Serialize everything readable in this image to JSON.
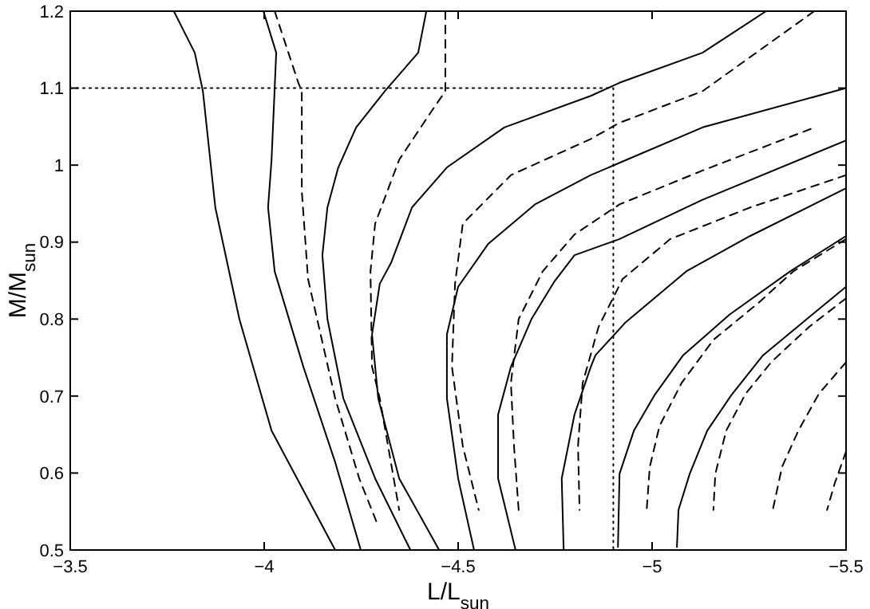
{
  "chart_data": {
    "type": "line",
    "xlabel": "L/L$_{sun}$",
    "ylabel": "M/M$_{sun}$",
    "xlim": [
      -3.5,
      -5.5
    ],
    "ylim": [
      0.5,
      1.2
    ],
    "xticks": [
      -3.5,
      -4,
      -4.5,
      -5,
      -5.5
    ],
    "yticks": [
      0.5,
      0.6,
      0.7,
      0.8,
      0.9,
      1,
      1.1,
      1.2
    ],
    "grid": false,
    "marker": "none",
    "series": [
      {
        "color": "#000000",
        "line_style": "solid",
        "x": [
          -3.767,
          -3.821,
          -3.842,
          -3.874,
          -3.936,
          -4.019,
          -4.183
        ],
        "values": [
          1.2,
          1.146,
          1.096,
          0.945,
          0.8,
          0.655,
          0.5
        ]
      },
      {
        "color": "#000000",
        "line_style": "solid",
        "x": [
          -3.998,
          -4.031,
          -4.019,
          -4.01,
          -4.027,
          -4.101,
          -4.183,
          -4.249
        ],
        "values": [
          1.2,
          1.146,
          1.007,
          0.945,
          0.862,
          0.738,
          0.614,
          0.5
        ]
      },
      {
        "color": "#000000",
        "line_style": "dashed",
        "x": [
          -4.027,
          -4.088,
          -4.097,
          -4.097,
          -4.113,
          -4.183,
          -4.245,
          -4.294
        ],
        "values": [
          1.2,
          1.107,
          1.096,
          0.966,
          0.852,
          0.697,
          0.593,
          0.531
        ]
      },
      {
        "color": "#000000",
        "line_style": "solid",
        "x": [
          -4.418,
          -4.397,
          -4.311,
          -4.237,
          -4.191,
          -4.163,
          -4.15,
          -4.163,
          -4.204,
          -4.286,
          -4.377
        ],
        "values": [
          1.2,
          1.146,
          1.096,
          1.049,
          0.997,
          0.945,
          0.883,
          0.8,
          0.697,
          0.593,
          0.5
        ]
      },
      {
        "color": "#000000",
        "line_style": "dashed",
        "x": [
          -4.467,
          -4.467,
          -4.43,
          -4.348,
          -4.286,
          -4.274,
          -4.278,
          -4.298,
          -4.348
        ],
        "values": [
          1.2,
          1.096,
          1.069,
          1.007,
          0.924,
          0.862,
          0.738,
          0.697,
          0.552
        ]
      },
      {
        "color": "#000000",
        "line_style": "solid",
        "x": [
          -5.294,
          -5.13,
          -4.916,
          -4.842,
          -4.619,
          -4.471,
          -4.381,
          -4.327,
          -4.298,
          -4.278,
          -4.294,
          -4.348,
          -4.451
        ],
        "values": [
          1.2,
          1.146,
          1.107,
          1.09,
          1.049,
          0.997,
          0.945,
          0.873,
          0.846,
          0.78,
          0.697,
          0.593,
          0.5
        ]
      },
      {
        "color": "#000000",
        "line_style": "dashed",
        "x": [
          -5.418,
          -5.13,
          -4.916,
          -4.842,
          -4.636,
          -4.512,
          -4.492,
          -4.484,
          -4.512,
          -4.553
        ],
        "values": [
          1.2,
          1.096,
          1.055,
          1.034,
          0.987,
          0.924,
          0.846,
          0.738,
          0.635,
          0.552
        ]
      },
      {
        "color": "#000000",
        "line_style": "solid",
        "x": [
          -5.5,
          -5.13,
          -4.916,
          -4.842,
          -4.698,
          -4.578,
          -4.5,
          -4.471,
          -4.471,
          -4.5,
          -4.541
        ],
        "values": [
          1.1,
          1.049,
          1.003,
          0.987,
          0.949,
          0.898,
          0.842,
          0.78,
          0.697,
          0.593,
          0.5
        ]
      },
      {
        "color": "#000000",
        "line_style": "dashed",
        "x": [
          -5.409,
          -5.13,
          -4.916,
          -4.8,
          -4.718,
          -4.656,
          -4.636,
          -4.644,
          -4.656
        ],
        "values": [
          1.047,
          0.993,
          0.949,
          0.91,
          0.862,
          0.8,
          0.717,
          0.635,
          0.552
        ]
      },
      {
        "color": "#000000",
        "line_style": "solid",
        "x": [
          -5.5,
          -5.13,
          -4.916,
          -4.8,
          -4.747,
          -4.689,
          -4.636,
          -4.603,
          -4.603,
          -4.648
        ],
        "values": [
          1.032,
          0.955,
          0.904,
          0.883,
          0.848,
          0.8,
          0.738,
          0.676,
          0.593,
          0.5
        ]
      },
      {
        "color": "#000000",
        "line_style": "dashed",
        "x": [
          -5.5,
          -5.253,
          -5.047,
          -4.924,
          -4.862,
          -4.821,
          -4.809,
          -4.813
        ],
        "values": [
          0.987,
          0.945,
          0.904,
          0.852,
          0.79,
          0.717,
          0.635,
          0.552
        ]
      },
      {
        "color": "#000000",
        "line_style": "solid",
        "x": [
          -5.5,
          -5.253,
          -5.088,
          -4.932,
          -4.854,
          -4.842,
          -4.8,
          -4.767,
          -4.772
        ],
        "values": [
          0.97,
          0.908,
          0.862,
          0.796,
          0.753,
          0.738,
          0.676,
          0.593,
          0.5
        ]
      },
      {
        "color": "#000000",
        "line_style": "dashed",
        "x": [
          -5.5,
          -5.364,
          -5.274,
          -5.158,
          -5.076,
          -5.019,
          -4.994,
          -4.986
        ],
        "values": [
          0.904,
          0.862,
          0.821,
          0.773,
          0.717,
          0.661,
          0.608,
          0.552
        ]
      },
      {
        "color": "#000000",
        "line_style": "solid",
        "x": [
          -5.5,
          -5.356,
          -5.2,
          -5.08,
          -5.006,
          -4.953,
          -4.916,
          -4.912
        ],
        "values": [
          0.908,
          0.862,
          0.806,
          0.753,
          0.701,
          0.655,
          0.599,
          0.504
        ]
      },
      {
        "color": "#000000",
        "line_style": "dashed",
        "x": [
          -5.5,
          -5.405,
          -5.307,
          -5.241,
          -5.191,
          -5.163,
          -5.158
        ],
        "values": [
          0.827,
          0.79,
          0.744,
          0.703,
          0.655,
          0.599,
          0.552
        ]
      },
      {
        "color": "#000000",
        "line_style": "solid",
        "x": [
          -5.5,
          -5.389,
          -5.286,
          -5.204,
          -5.142,
          -5.097,
          -5.068,
          -5.064
        ],
        "values": [
          0.842,
          0.796,
          0.753,
          0.701,
          0.655,
          0.599,
          0.552,
          0.504
        ]
      },
      {
        "color": "#000000",
        "line_style": "dashed",
        "x": [
          -5.5,
          -5.43,
          -5.377,
          -5.335,
          -5.311
        ],
        "values": [
          0.744,
          0.703,
          0.655,
          0.608,
          0.552
        ]
      },
      {
        "color": "#000000",
        "line_style": "dashed",
        "x": [
          -5.5,
          -5.471,
          -5.451
        ],
        "values": [
          0.628,
          0.587,
          0.552
        ]
      },
      {
        "color": "#000000",
        "line_style": "dotted",
        "x": [
          -3.5,
          -4.9,
          -4.9
        ],
        "values": [
          1.1,
          1.1,
          0.5
        ]
      }
    ]
  }
}
